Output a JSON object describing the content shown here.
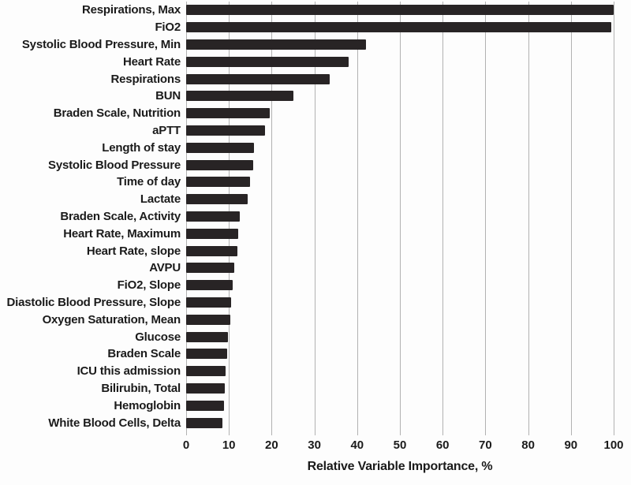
{
  "figure": {
    "background_color": "#fdfdfd",
    "bar_color": "#282425",
    "gridline_color": "#b2b2b2",
    "text_color": "#1b1b1b"
  },
  "chart_data": {
    "type": "bar",
    "orientation": "horizontal",
    "title": "",
    "xlabel": "Relative Variable Importance, %",
    "ylabel": "",
    "xlim": [
      0,
      100
    ],
    "xticks": [
      0,
      10,
      20,
      30,
      40,
      50,
      60,
      70,
      80,
      90,
      100
    ],
    "grid": true,
    "legend": false,
    "categories": [
      "Respirations, Max",
      "FiO2",
      "Systolic Blood Pressure, Min",
      "Heart Rate",
      "Respirations",
      "BUN",
      "Braden Scale, Nutrition",
      "aPTT",
      "Length of stay",
      "Systolic Blood Pressure",
      "Time of day",
      "Lactate",
      "Braden Scale, Activity",
      "Heart Rate, Maximum",
      "Heart Rate, slope",
      "AVPU",
      "FiO2, Slope",
      "Diastolic Blood Pressure, Slope",
      "Oxygen Saturation, Mean",
      "Glucose",
      "Braden Scale",
      "ICU this admission",
      "Bilirubin, Total",
      "Hemoglobin",
      "White Blood Cells, Delta"
    ],
    "values": [
      100,
      99.5,
      42,
      38,
      33.5,
      25,
      19.6,
      18.5,
      15.8,
      15.7,
      15,
      14.3,
      12.6,
      12.2,
      11.9,
      11.3,
      10.9,
      10.5,
      10.3,
      9.7,
      9.6,
      9.2,
      9.1,
      8.9,
      8.4
    ]
  }
}
